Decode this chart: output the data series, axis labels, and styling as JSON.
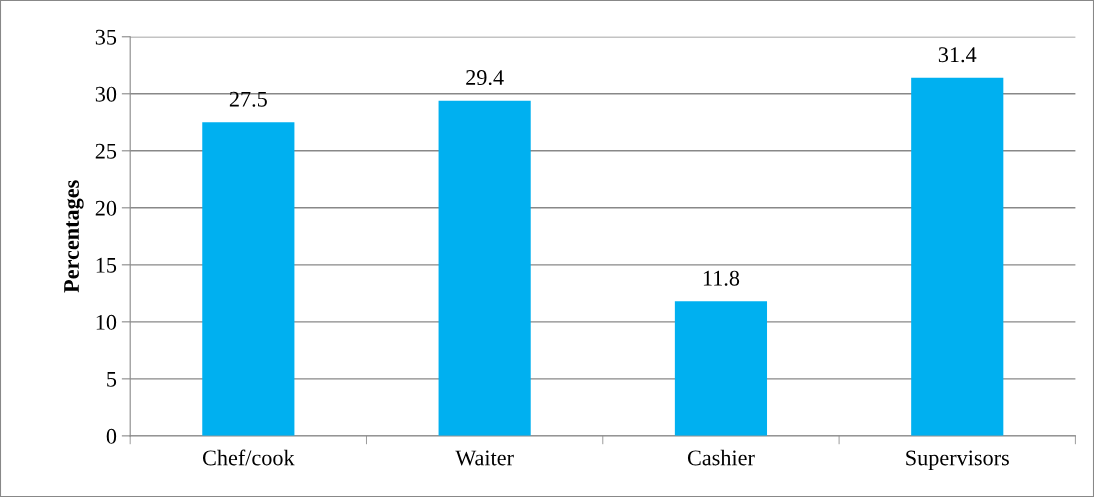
{
  "chart_data": {
    "type": "bar",
    "ylabel": "Percentages",
    "categories": [
      "Chef/cook",
      "Waiter",
      "Cashier",
      "Supervisors"
    ],
    "values": [
      27.5,
      29.4,
      11.8,
      31.4
    ],
    "color": "#00b0f0",
    "ylim": [
      0,
      35
    ],
    "yticks": [
      0,
      5,
      10,
      15,
      20,
      25,
      30,
      35
    ],
    "grid": "y",
    "data_labels": true
  }
}
